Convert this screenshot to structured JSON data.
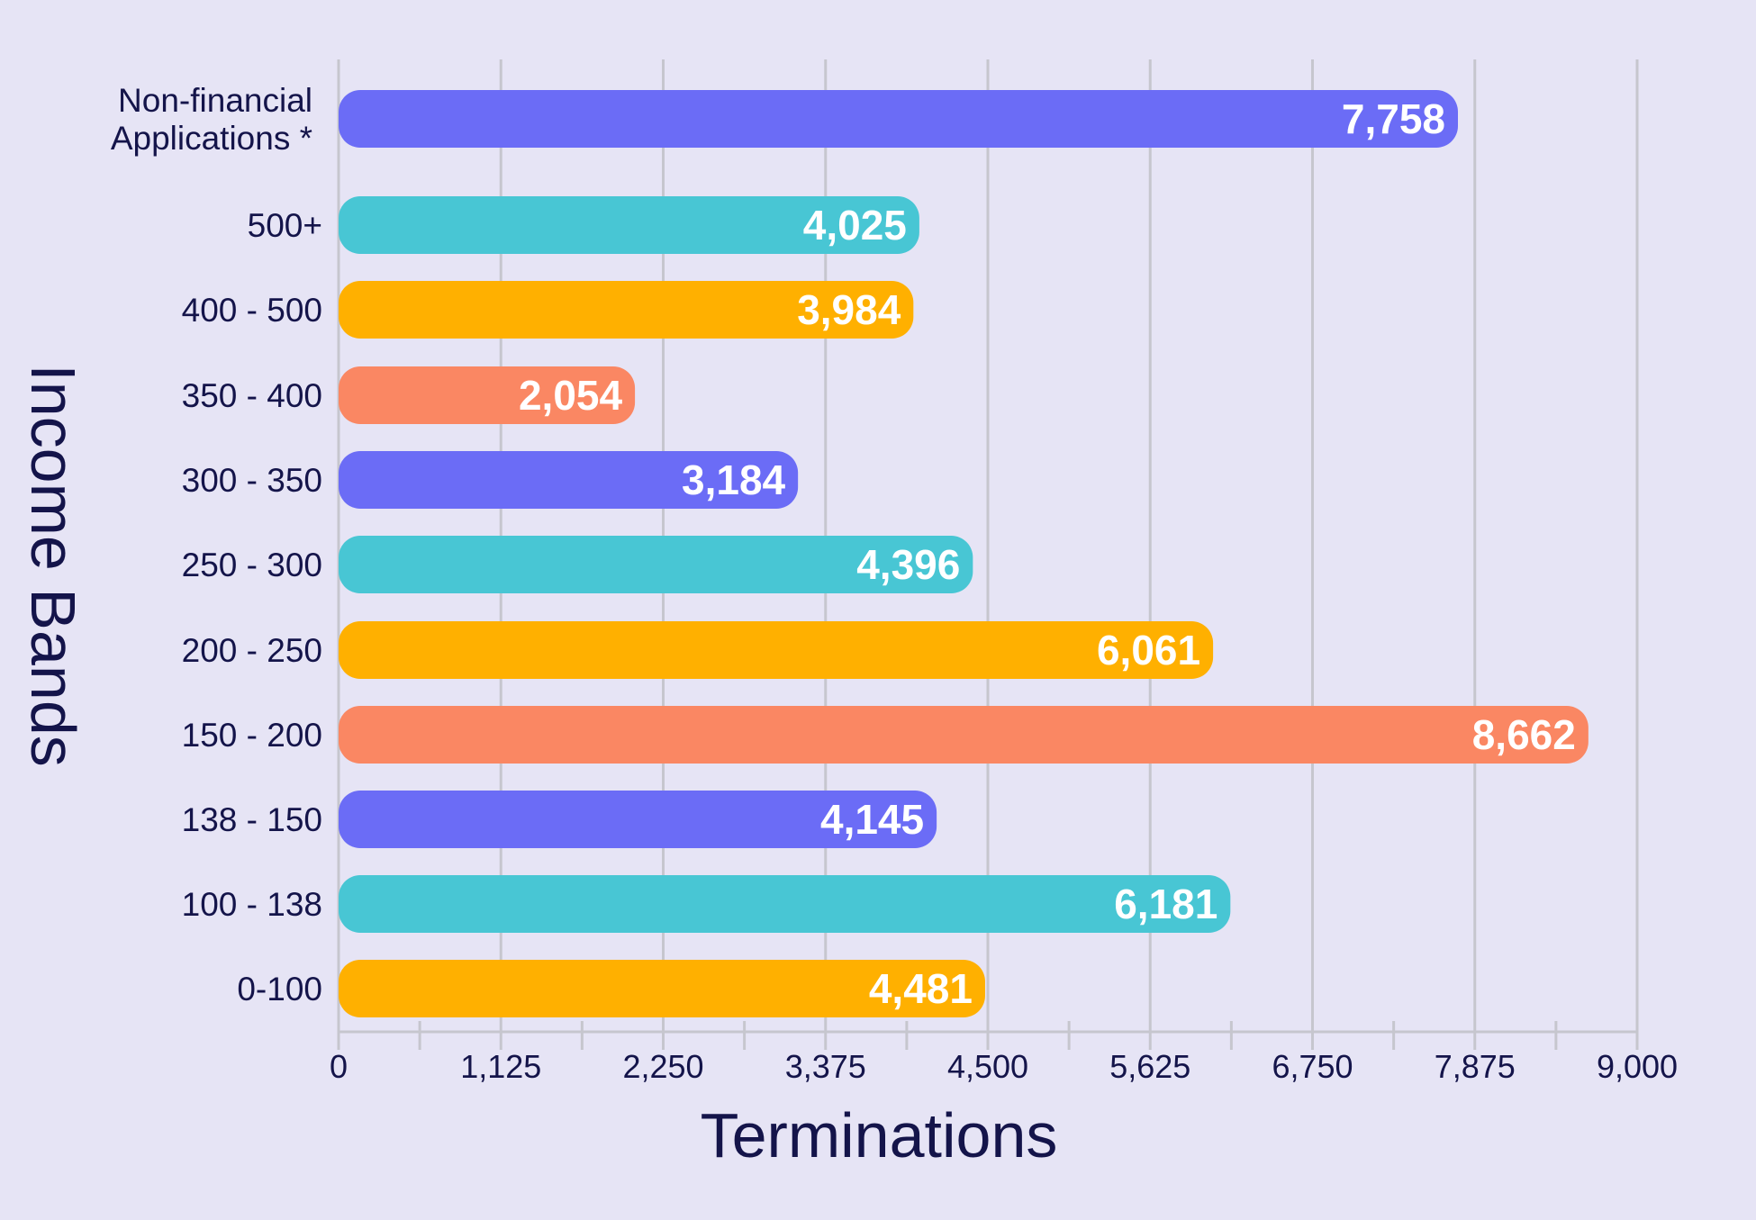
{
  "chart_data": {
    "type": "bar",
    "orientation": "horizontal",
    "xlabel": "Terminations",
    "ylabel": "Income Bands",
    "xlim": [
      0,
      9000
    ],
    "x_ticks": [
      "0",
      "1,125",
      "2,250",
      "3,375",
      "4,500",
      "5,625",
      "6,750",
      "7,875",
      "9,000"
    ],
    "x_tick_values": [
      0,
      1125,
      2250,
      3375,
      4500,
      5625,
      6750,
      7875,
      9000
    ],
    "grid": true,
    "legend": "none",
    "categories": [
      [
        "Non-financial",
        "Applications *"
      ],
      [
        "500+"
      ],
      [
        "400 - 500"
      ],
      [
        "350 - 400"
      ],
      [
        "300 - 350"
      ],
      [
        "250 - 300"
      ],
      [
        "200 - 250"
      ],
      [
        "150 - 200"
      ],
      [
        "138 - 150"
      ],
      [
        "100 - 138"
      ],
      [
        "0-100"
      ]
    ],
    "values": [
      7758,
      4025,
      3984,
      2054,
      3184,
      4396,
      6061,
      8662,
      4145,
      6181,
      4481
    ],
    "value_labels": [
      "7,758",
      "4,025",
      "3,984",
      "2,054",
      "3,184",
      "4,396",
      "6,061",
      "8,662",
      "4,145",
      "6,181",
      "4,481"
    ],
    "bar_colors": [
      "#6b6cf6",
      "#48c6d4",
      "#ffb000",
      "#fa8763",
      "#6b6cf6",
      "#48c6d4",
      "#ffb000",
      "#fa8763",
      "#6b6cf6",
      "#48c6d4",
      "#ffb000"
    ],
    "colors": {
      "background": "#e6e4f5",
      "grid": "#c6c6ce",
      "text": "#14144a",
      "value_text": "#ffffff"
    }
  }
}
